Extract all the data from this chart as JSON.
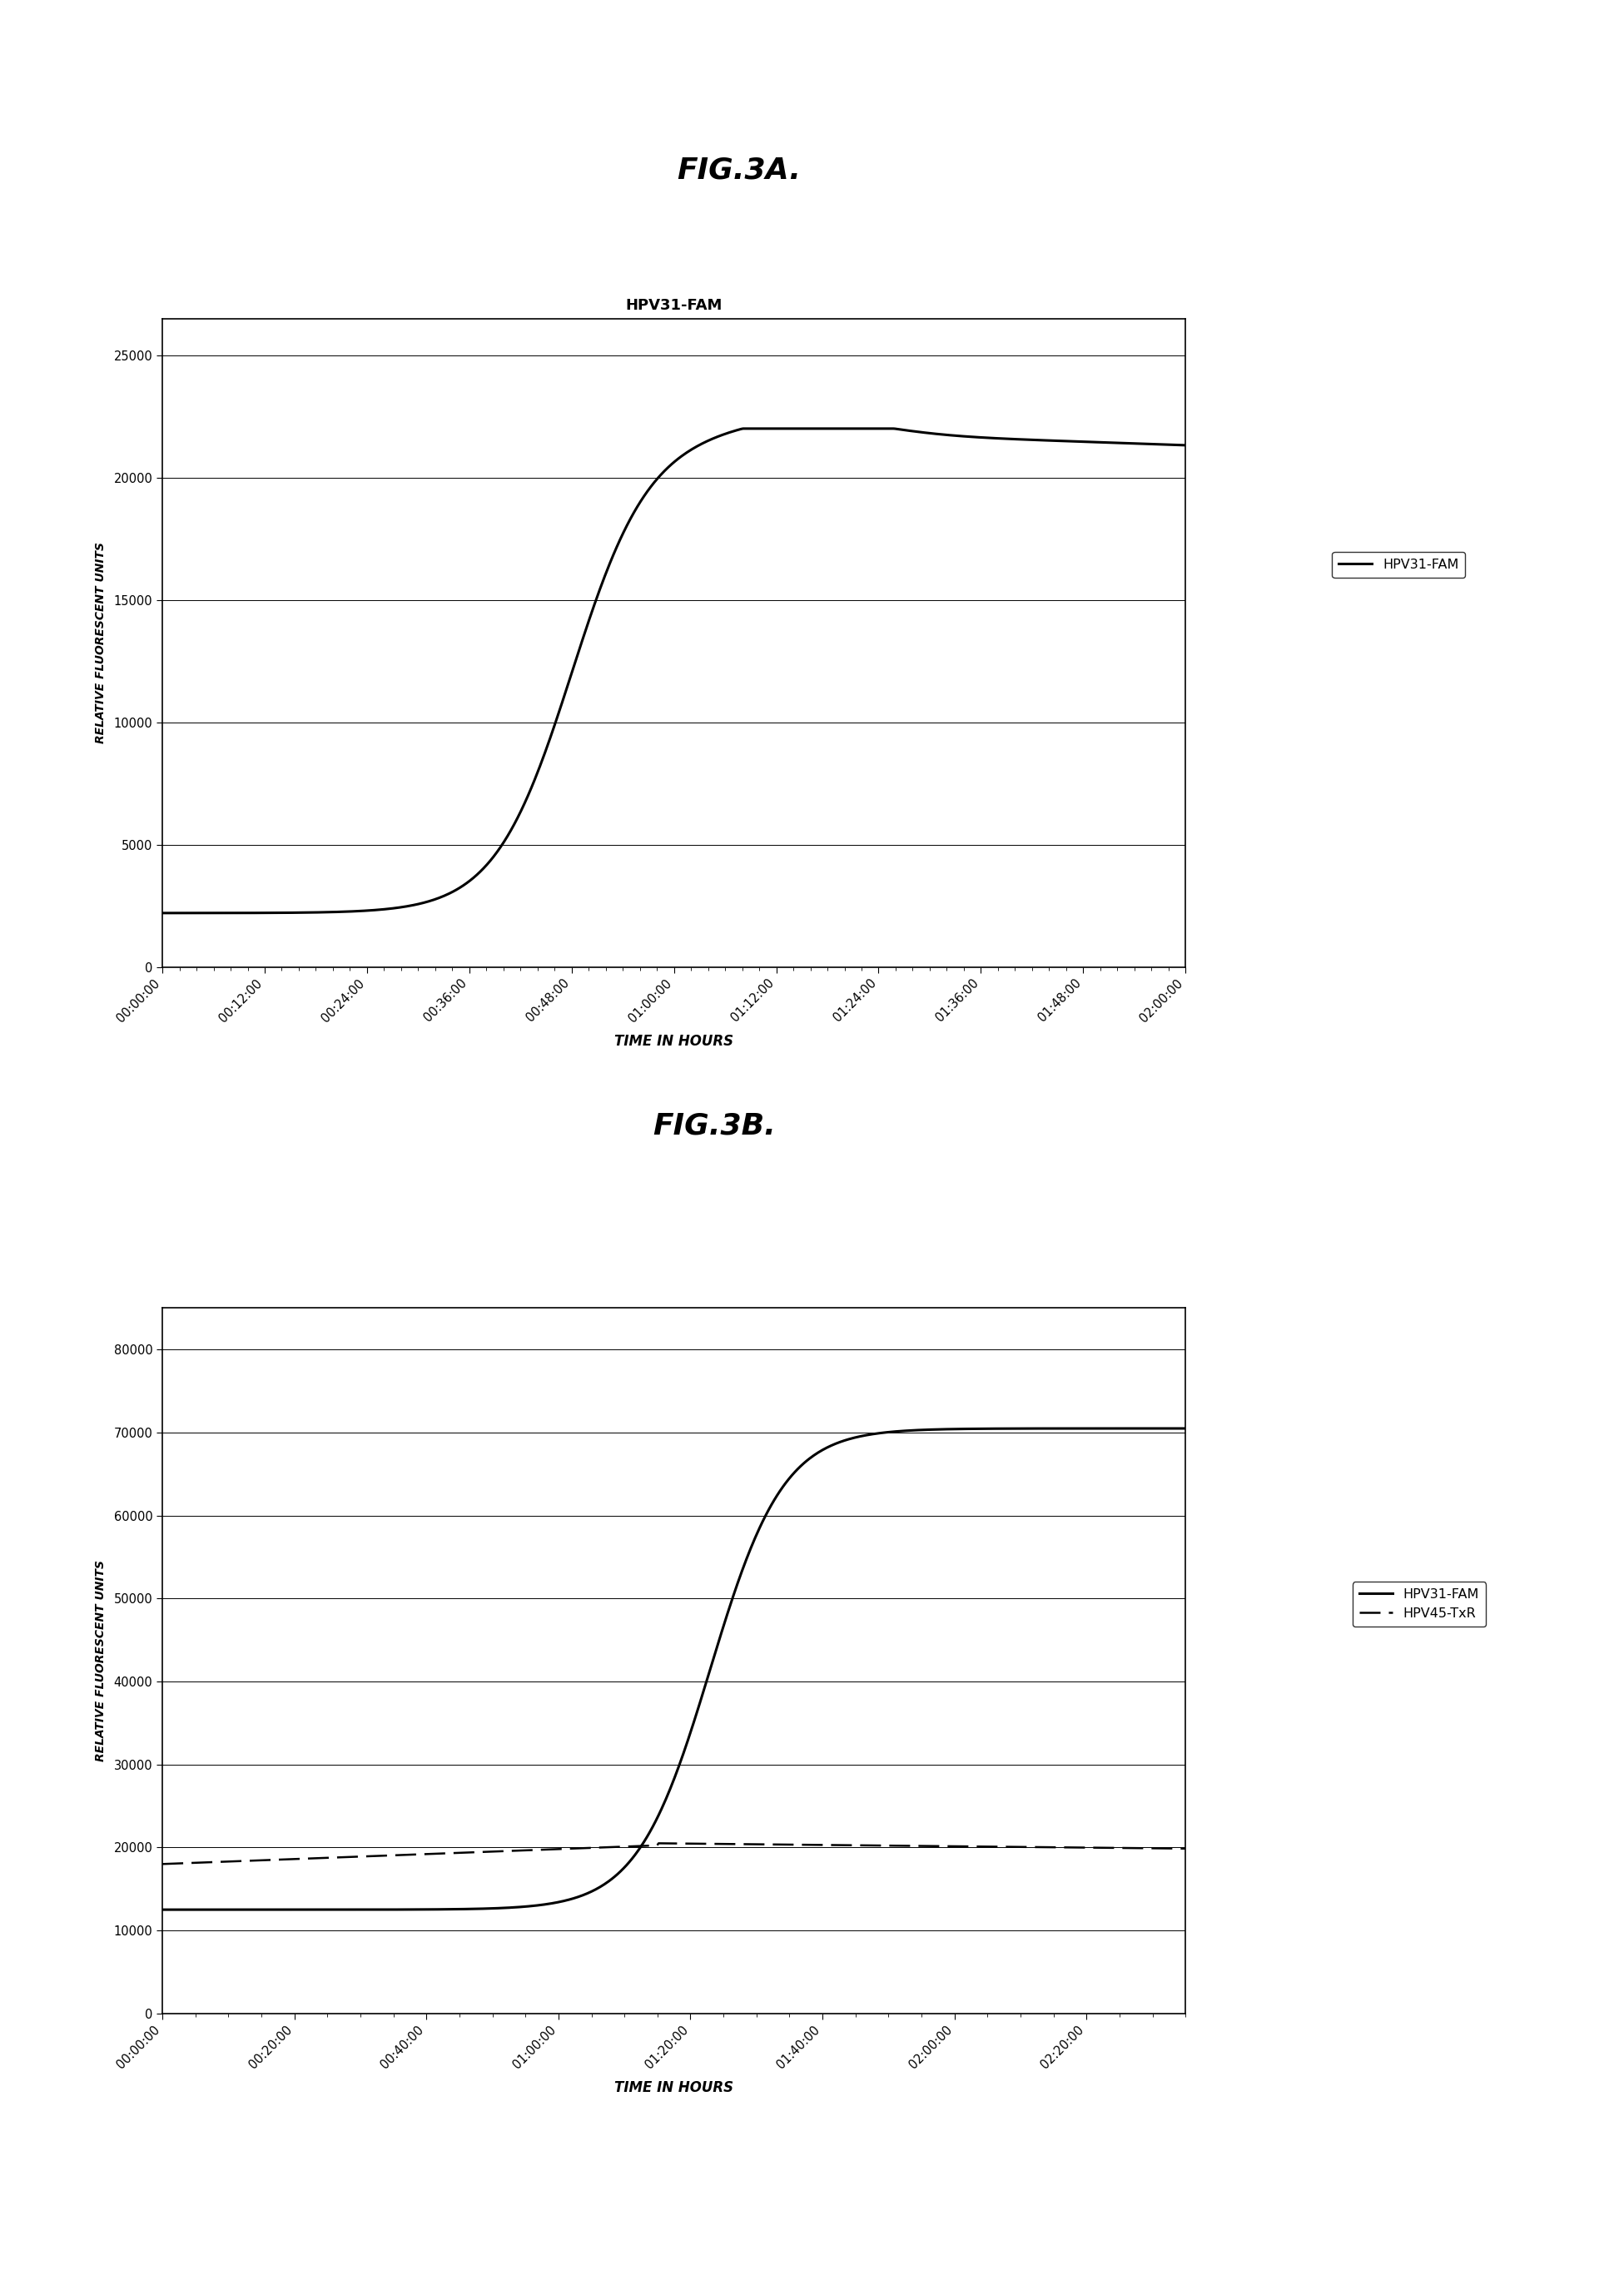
{
  "fig_title_a": "FIG.3A.",
  "fig_title_b": "FIG.3B.",
  "chart_a_title": "HPV31-FAM",
  "chart_a_ylabel": "RELATIVE FLUORESCENT UNITS",
  "chart_a_xlabel": "TIME IN HOURS",
  "chart_a_yticks": [
    0,
    5000,
    10000,
    15000,
    20000,
    25000
  ],
  "chart_a_ylim": [
    0,
    26500
  ],
  "chart_a_xtick_labels": [
    "00:00:00",
    "00:12:00",
    "00:24:00",
    "00:36:00",
    "00:48:00",
    "01:00:00",
    "01:12:00",
    "01:24:00",
    "01:36:00",
    "01:48:00",
    "02:00:00"
  ],
  "chart_a_line1_label": "HPV31-FAM",
  "chart_b_ylabel": "RELATIVE FLUORESCENT UNITS",
  "chart_b_xlabel": "TIME IN HOURS",
  "chart_b_yticks": [
    0,
    10000,
    20000,
    30000,
    40000,
    50000,
    60000,
    70000,
    80000
  ],
  "chart_b_ylim": [
    0,
    85000
  ],
  "chart_b_xtick_labels": [
    "00:00:00",
    "00:20:00",
    "00:40:00",
    "01:00:00",
    "01:20:00",
    "01:40:00",
    "02:00:00",
    "02:20:00"
  ],
  "chart_b_line1_label": "HPV31-FAM",
  "chart_b_line2_label": "HPV45-TxR",
  "background_color": "#ffffff",
  "line_color": "#000000"
}
